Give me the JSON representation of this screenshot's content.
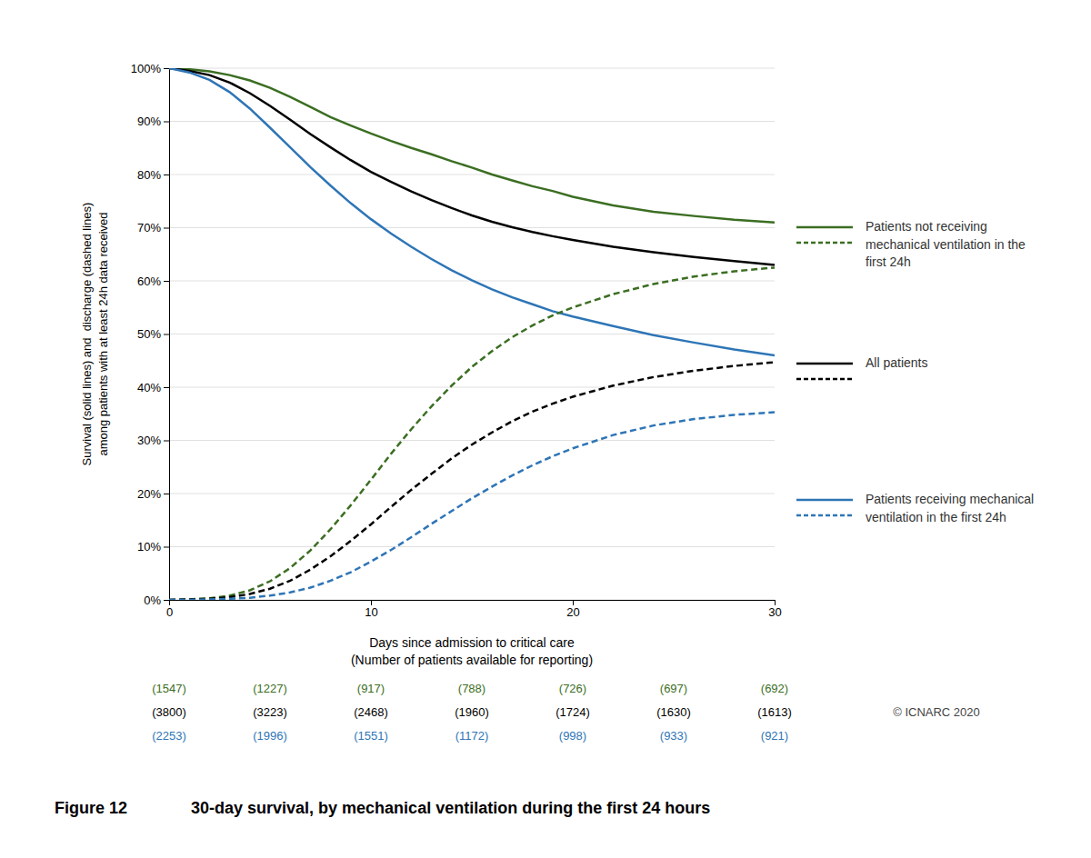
{
  "chart_data": {
    "type": "line",
    "title": "30-day survival, by mechanical ventilation during the first 24 hours",
    "annotations": [
      "Figure 12",
      "© ICNARC 2020"
    ],
    "xlabel": "Days since admission to critical care\n(Number of patients available for reporting)",
    "ylabel": "Survival (solid lines) and  discharge (dashed lines)\namong patients with at least 24h data received",
    "xlim": [
      0,
      30
    ],
    "xticks": [
      0,
      10,
      20,
      30
    ],
    "ylim": [
      0,
      1.0
    ],
    "yticks": [
      {
        "value": 0.0,
        "label": "0%"
      },
      {
        "value": 0.1,
        "label": "10%"
      },
      {
        "value": 0.2,
        "label": "20%"
      },
      {
        "value": 0.3,
        "label": "30%"
      },
      {
        "value": 0.4,
        "label": "40%"
      },
      {
        "value": 0.5,
        "label": "50%"
      },
      {
        "value": 0.6,
        "label": "60%"
      },
      {
        "value": 0.7,
        "label": "70%"
      },
      {
        "value": 0.8,
        "label": "80%"
      },
      {
        "value": 0.9,
        "label": "90%"
      },
      {
        "value": 1.0,
        "label": "100%"
      }
    ],
    "grid": "y",
    "legend": "right",
    "series": [
      {
        "name": "Patients not receiving\nmechanical ventilation in the\nfirst 24h",
        "color": "#3b6e22",
        "line_style": "solid",
        "x": [
          0,
          1,
          2,
          3,
          4,
          5,
          6,
          7,
          8,
          9,
          10,
          11,
          12,
          13,
          14,
          15,
          16,
          17,
          18,
          19,
          20,
          22,
          24,
          26,
          28,
          30
        ],
        "values": [
          1.0,
          0.998,
          0.994,
          0.987,
          0.977,
          0.963,
          0.946,
          0.927,
          0.908,
          0.892,
          0.877,
          0.863,
          0.85,
          0.838,
          0.825,
          0.813,
          0.8,
          0.789,
          0.778,
          0.769,
          0.758,
          0.742,
          0.73,
          0.722,
          0.715,
          0.71
        ]
      },
      {
        "name": "All patients",
        "color": "#000000",
        "line_style": "solid",
        "x": [
          0,
          1,
          2,
          3,
          4,
          5,
          6,
          7,
          8,
          9,
          10,
          11,
          12,
          13,
          14,
          15,
          16,
          17,
          18,
          19,
          20,
          22,
          24,
          26,
          28,
          30
        ],
        "values": [
          1.0,
          0.995,
          0.987,
          0.973,
          0.953,
          0.929,
          0.903,
          0.876,
          0.851,
          0.827,
          0.805,
          0.786,
          0.768,
          0.752,
          0.737,
          0.723,
          0.711,
          0.701,
          0.692,
          0.684,
          0.677,
          0.664,
          0.654,
          0.645,
          0.637,
          0.63
        ]
      },
      {
        "name": "Patients receiving mechanical\nventilation in the first 24h",
        "color": "#2e75b6",
        "line_style": "solid",
        "x": [
          0,
          1,
          2,
          3,
          4,
          5,
          6,
          7,
          8,
          9,
          10,
          11,
          12,
          13,
          14,
          15,
          16,
          17,
          18,
          19,
          20,
          22,
          24,
          26,
          28,
          30
        ],
        "values": [
          1.0,
          0.992,
          0.978,
          0.955,
          0.924,
          0.888,
          0.851,
          0.814,
          0.779,
          0.746,
          0.716,
          0.689,
          0.664,
          0.641,
          0.62,
          0.601,
          0.584,
          0.569,
          0.556,
          0.543,
          0.533,
          0.515,
          0.498,
          0.484,
          0.471,
          0.46
        ]
      },
      {
        "name": "Patients not receiving\nmechanical ventilation in the\nfirst 24h",
        "color": "#3b6e22",
        "line_style": "dashed",
        "x": [
          0,
          1,
          2,
          3,
          4,
          5,
          6,
          7,
          8,
          9,
          10,
          11,
          12,
          13,
          14,
          15,
          16,
          17,
          18,
          19,
          20,
          22,
          24,
          26,
          28,
          30
        ],
        "values": [
          0.0,
          0.001,
          0.003,
          0.008,
          0.018,
          0.035,
          0.06,
          0.093,
          0.133,
          0.178,
          0.226,
          0.275,
          0.321,
          0.364,
          0.403,
          0.438,
          0.468,
          0.494,
          0.516,
          0.535,
          0.55,
          0.575,
          0.594,
          0.608,
          0.618,
          0.625
        ]
      },
      {
        "name": "All patients",
        "color": "#000000",
        "line_style": "dashed",
        "x": [
          0,
          1,
          2,
          3,
          4,
          5,
          6,
          7,
          8,
          9,
          10,
          11,
          12,
          13,
          14,
          15,
          16,
          17,
          18,
          19,
          20,
          22,
          24,
          26,
          28,
          30
        ],
        "values": [
          0.0,
          0.001,
          0.002,
          0.005,
          0.011,
          0.021,
          0.036,
          0.057,
          0.082,
          0.111,
          0.142,
          0.175,
          0.207,
          0.237,
          0.266,
          0.292,
          0.315,
          0.336,
          0.354,
          0.369,
          0.382,
          0.403,
          0.419,
          0.431,
          0.44,
          0.447
        ]
      },
      {
        "name": "Patients receiving mechanical\nventilation in the first 24h",
        "color": "#2e75b6",
        "line_style": "dashed",
        "x": [
          0,
          1,
          2,
          3,
          4,
          5,
          6,
          7,
          8,
          9,
          10,
          11,
          12,
          13,
          14,
          15,
          16,
          17,
          18,
          19,
          20,
          22,
          24,
          26,
          28,
          30
        ],
        "values": [
          0.0,
          0.0,
          0.001,
          0.002,
          0.004,
          0.008,
          0.014,
          0.023,
          0.036,
          0.052,
          0.072,
          0.094,
          0.118,
          0.143,
          0.167,
          0.191,
          0.213,
          0.234,
          0.253,
          0.27,
          0.285,
          0.31,
          0.328,
          0.34,
          0.348,
          0.353
        ]
      }
    ],
    "count_x": [
      0,
      5,
      10,
      15,
      20,
      25,
      30
    ],
    "counts": [
      {
        "color": "#3b6e22",
        "values": [
          1547,
          1227,
          917,
          788,
          726,
          697,
          692
        ],
        "value_labels": [
          "(1547)",
          "(1227)",
          "(917)",
          "(788)",
          "(726)",
          "(697)",
          "(692)"
        ]
      },
      {
        "color": "#000000",
        "values": [
          3800,
          3223,
          2468,
          1960,
          1724,
          1630,
          1613
        ],
        "value_labels": [
          "(3800)",
          "(3223)",
          "(2468)",
          "(1960)",
          "(1724)",
          "(1630)",
          "(1613)"
        ]
      },
      {
        "color": "#2e75b6",
        "values": [
          2253,
          1996,
          1551,
          1172,
          998,
          933,
          921
        ],
        "value_labels": [
          "(2253)",
          "(1996)",
          "(1551)",
          "(1172)",
          "(998)",
          "(933)",
          "(921)"
        ]
      }
    ]
  }
}
